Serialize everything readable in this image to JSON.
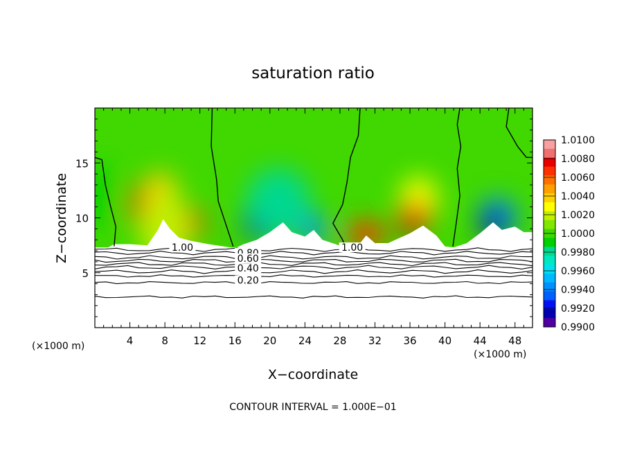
{
  "chart_data": {
    "type": "heatmap",
    "title": "saturation ratio",
    "xlabel": "X−coordinate",
    "ylabel": "Z−coordinate",
    "x_unit": "(×1000 m)",
    "y_unit": "(×1000 m)",
    "xlim": [
      0,
      50
    ],
    "ylim": [
      0,
      20
    ],
    "x_ticks": [
      "4",
      "8",
      "12",
      "16",
      "20",
      "24",
      "28",
      "32",
      "36",
      "40",
      "44",
      "48"
    ],
    "y_ticks": [
      "5",
      "10",
      "15"
    ],
    "footer": "CONTOUR INTERVAL = 1.000E−01",
    "colorbar": {
      "min": 0.99,
      "max": 1.01,
      "labels": [
        "1.0100",
        "1.0080",
        "1.0060",
        "1.0040",
        "1.0020",
        "1.0000",
        "0.9980",
        "0.9960",
        "0.9940",
        "0.9920",
        "0.9900"
      ],
      "colors": [
        "#f8a0a0",
        "#f07070",
        "#e80000",
        "#ff3000",
        "#ff7000",
        "#ffa000",
        "#ffd000",
        "#ffff00",
        "#c0f000",
        "#80e800",
        "#40d800",
        "#00d000",
        "#00d890",
        "#00e8c0",
        "#00e0f0",
        "#00b8ff",
        "#0090ff",
        "#0060ff",
        "#0010f0",
        "#0000b0",
        "#5000a0"
      ]
    },
    "contour_labels": [
      {
        "text": "1.00",
        "x": 10.0,
        "z": 7.0
      },
      {
        "text": "1.00",
        "x": 29.4,
        "z": 7.0
      },
      {
        "text": "0.80",
        "x": 17.5,
        "z": 6.5
      },
      {
        "text": "0.60",
        "x": 17.5,
        "z": 6.0
      },
      {
        "text": "0.40",
        "x": 17.5,
        "z": 5.1
      },
      {
        "text": "0.20",
        "x": 17.5,
        "z": 4.0
      }
    ],
    "cells": [
      {
        "x": 0.5,
        "z": 12.0,
        "w": 1.6,
        "h": 5.0,
        "v": 0.999
      },
      {
        "x": 6.5,
        "z": 11.0,
        "w": 3.5,
        "h": 3.8,
        "v": 1.008
      },
      {
        "x": 7.5,
        "z": 12.5,
        "w": 2.5,
        "h": 2.2,
        "v": 1.004
      },
      {
        "x": 10.5,
        "z": 9.5,
        "w": 2.6,
        "h": 2.0,
        "v": 1.008
      },
      {
        "x": 8.0,
        "z": 9.0,
        "w": 4.5,
        "h": 6.0,
        "v": 1.0015
      },
      {
        "x": 19.5,
        "z": 10.0,
        "w": 3.5,
        "h": 3.0,
        "v": 0.994
      },
      {
        "x": 19.0,
        "z": 9.5,
        "w": 3.0,
        "h": 1.6,
        "v": 0.991
      },
      {
        "x": 25.0,
        "z": 9.0,
        "w": 1.8,
        "h": 1.4,
        "v": 0.994
      },
      {
        "x": 21.0,
        "z": 11.5,
        "w": 6.0,
        "h": 5.0,
        "v": 0.9975
      },
      {
        "x": 37.0,
        "z": 11.5,
        "w": 3.0,
        "h": 3.5,
        "v": 1.003
      },
      {
        "x": 36.5,
        "z": 10.0,
        "w": 2.5,
        "h": 1.8,
        "v": 1.008
      },
      {
        "x": 31.0,
        "z": 8.5,
        "w": 3.0,
        "h": 1.4,
        "v": 1.007
      },
      {
        "x": 46.0,
        "z": 10.0,
        "w": 3.0,
        "h": 2.6,
        "v": 0.994
      },
      {
        "x": 45.5,
        "z": 9.5,
        "w": 2.0,
        "h": 1.5,
        "v": 0.991
      }
    ]
  }
}
